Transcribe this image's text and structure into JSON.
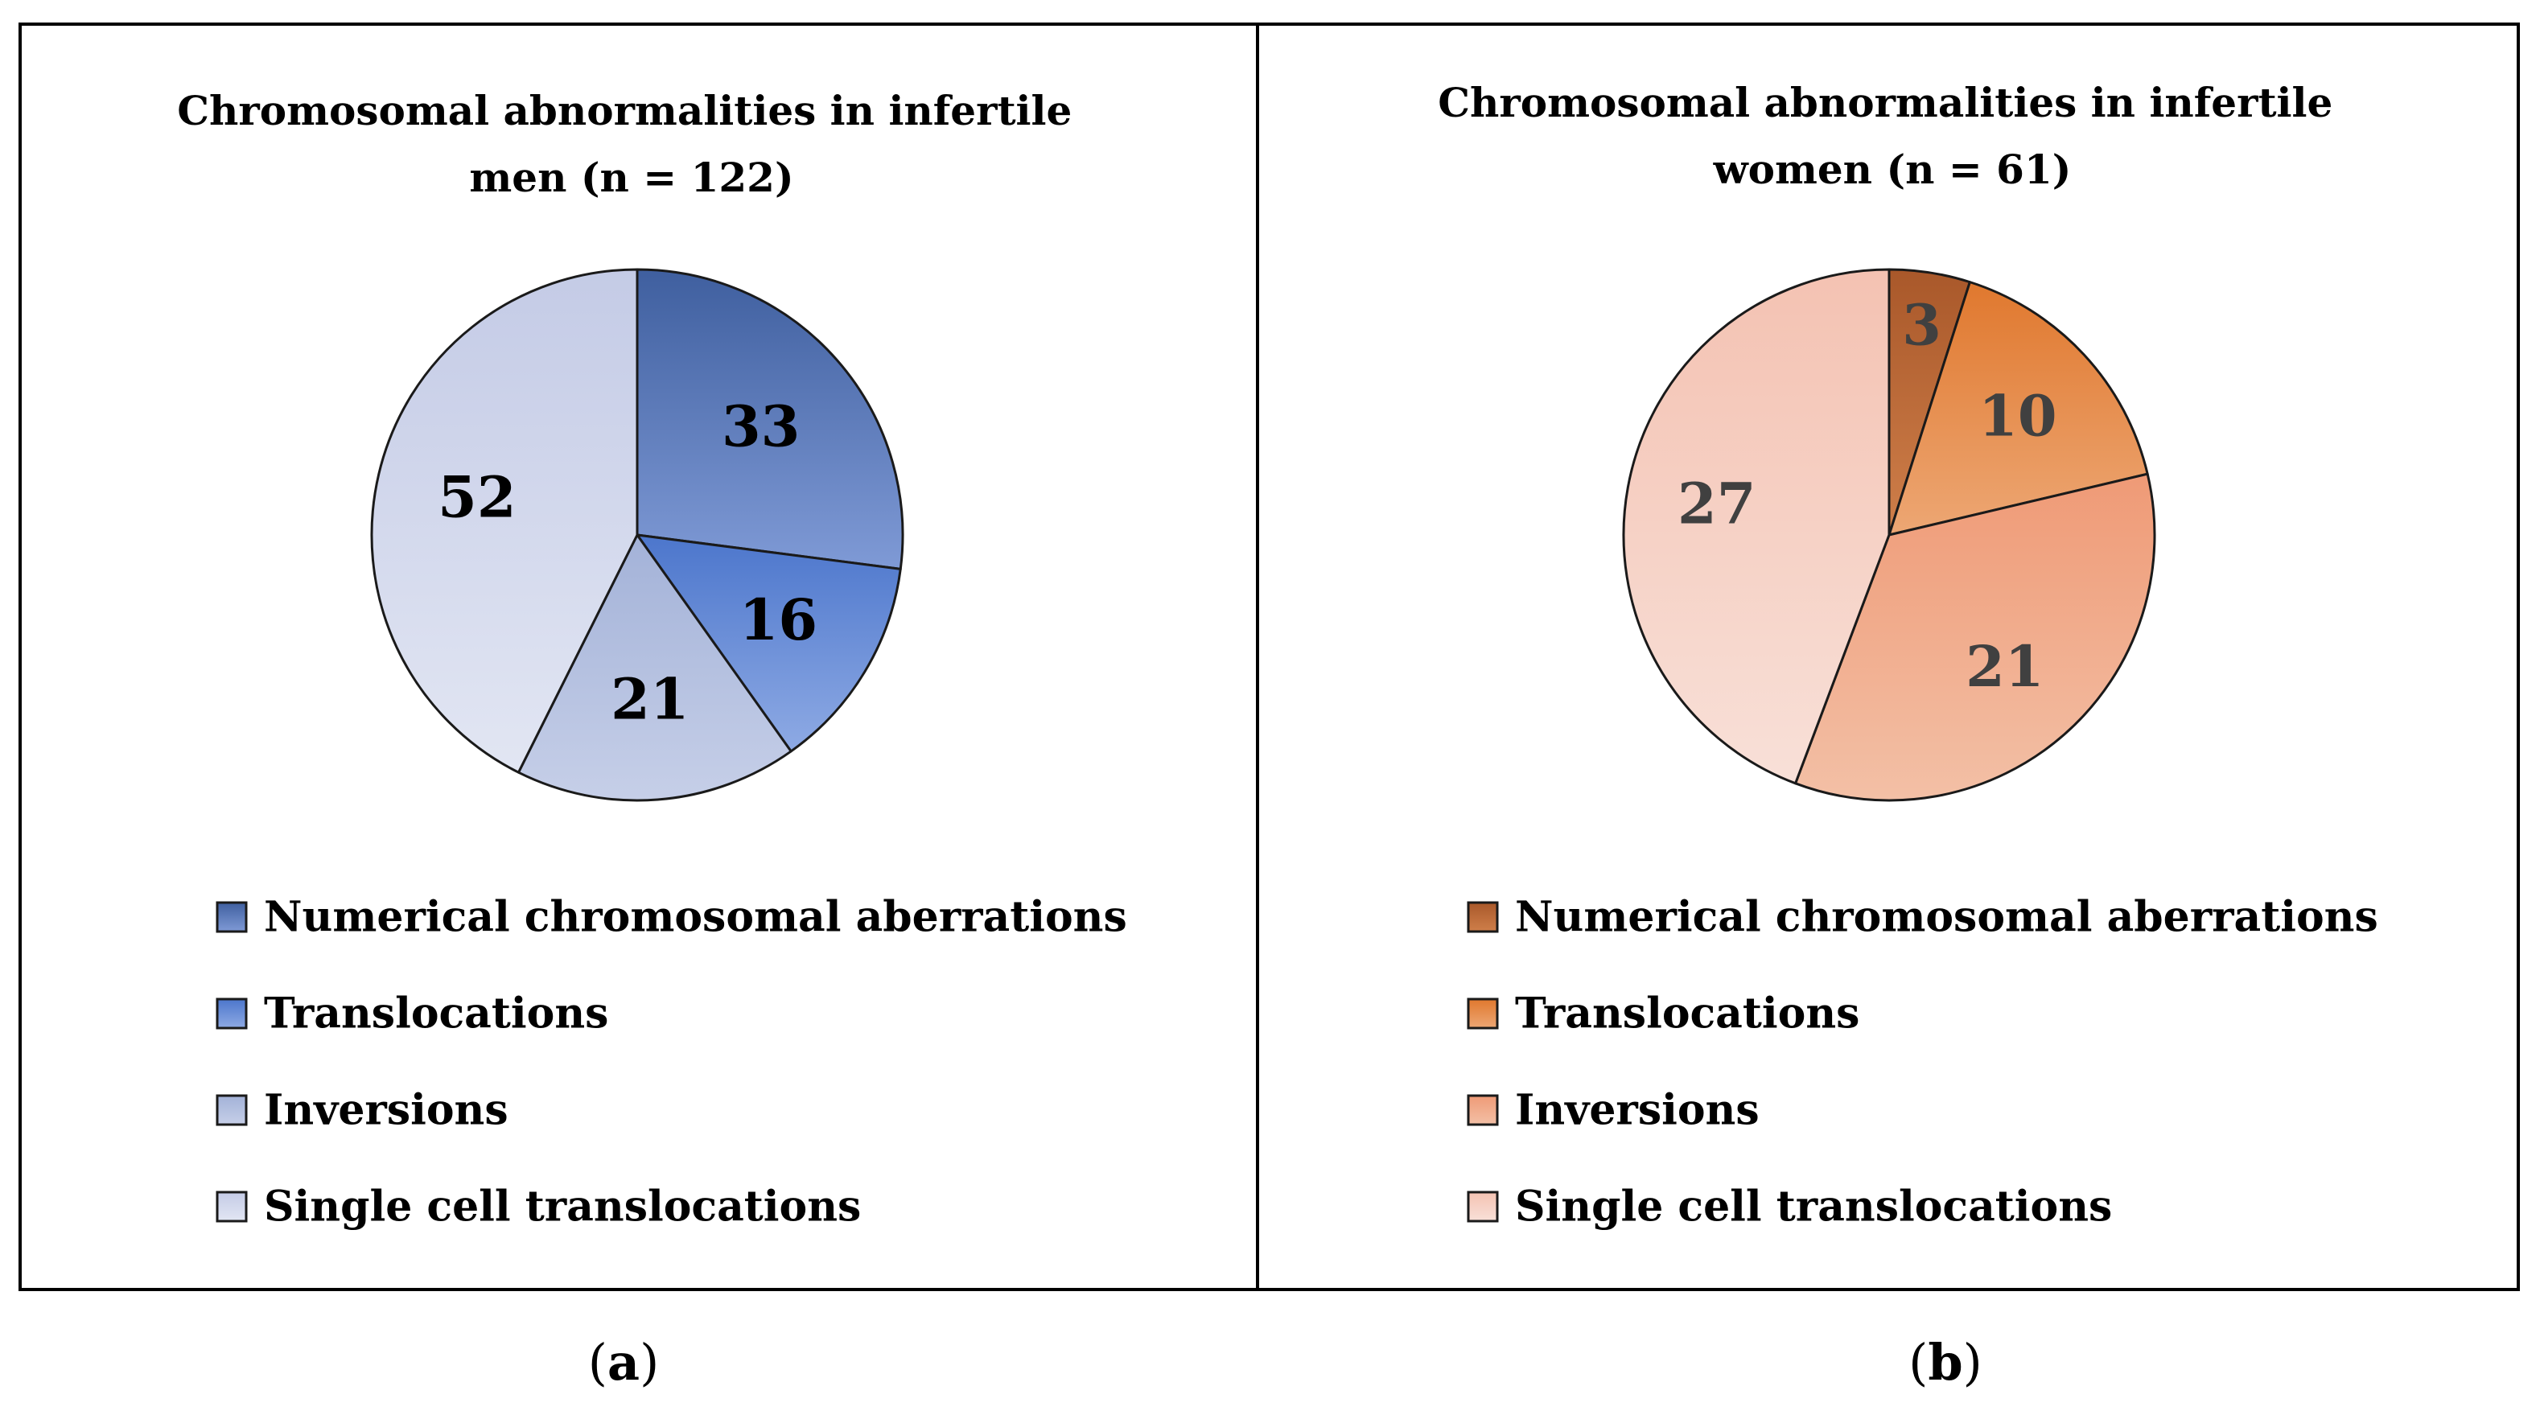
{
  "chart_data": [
    {
      "type": "pie",
      "title": "Chromosomal abnormalities in infertile men (n = 122)",
      "title_lines": [
        "Chromosomal abnormalities in infertile",
        "men (n = 122)"
      ],
      "panel_label": "a",
      "categories": [
        "Numerical chromosomal aberrations",
        "Translocations",
        "Inversions",
        "Single cell translocations"
      ],
      "values": [
        33,
        16,
        21,
        52
      ],
      "colors_top": [
        "#3f5f9f",
        "#4c76cc",
        "#a3b2d8",
        "#c4cbe6"
      ],
      "colors_bottom": [
        "#7f9ad6",
        "#8eaae4",
        "#c6cfe8",
        "#e2e6f3"
      ],
      "label_color": "#000000",
      "legend_position": "bottom"
    },
    {
      "type": "pie",
      "title": "Chromosomal abnormalities in infertile women (n = 61)",
      "title_lines": [
        "Chromosomal abnormalities in infertile",
        "women (n = 61)"
      ],
      "panel_label": "b",
      "categories": [
        "Numerical chromosomal aberrations",
        "Translocations",
        "Inversions",
        "Single cell translocations"
      ],
      "values": [
        3,
        10,
        21,
        27
      ],
      "colors_top": [
        "#a9582a",
        "#e0782e",
        "#ef9a76",
        "#f4c2b2"
      ],
      "colors_bottom": [
        "#cf7f4a",
        "#eda774",
        "#f3c0a6",
        "#f8e0d8"
      ],
      "label_color": "#404040",
      "legend_position": "bottom"
    }
  ]
}
